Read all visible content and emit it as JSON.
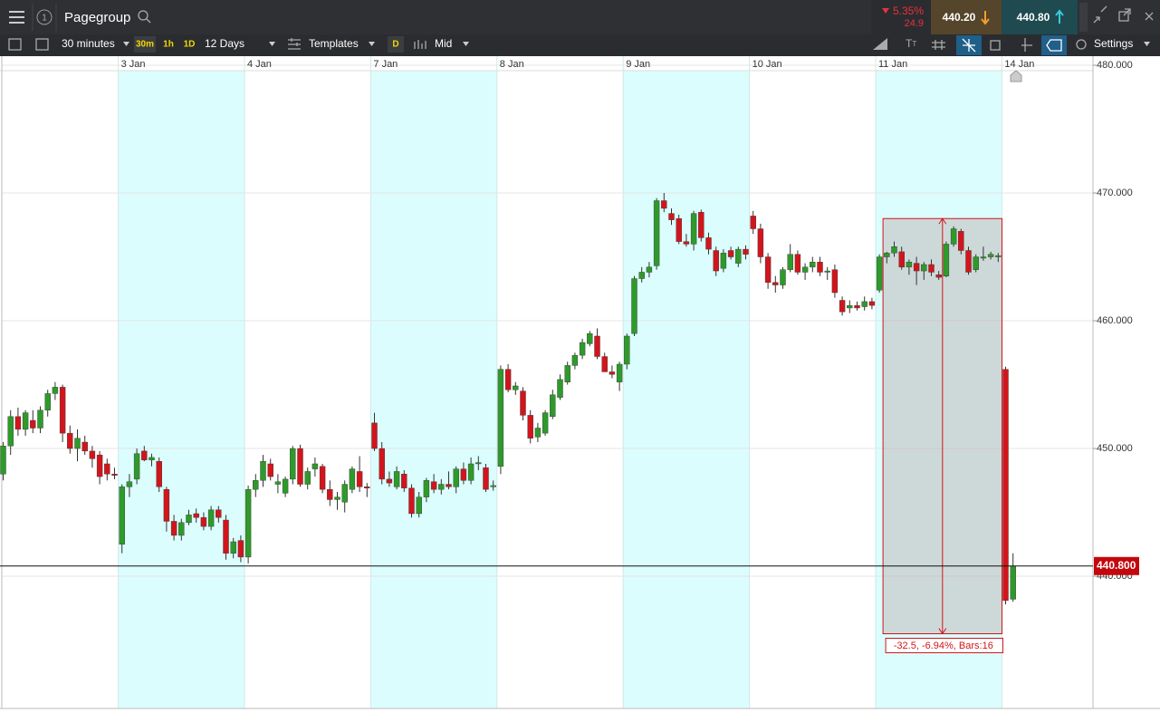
{
  "toolbar": {
    "instrument": "Pagegroup",
    "panel_number": "1",
    "interval": "30 minutes",
    "interval_buttons": [
      "30m",
      "1h",
      "1D"
    ],
    "range": "12 Days",
    "templates": "Templates",
    "d_button": "D",
    "price_mode": "Mid",
    "settings": "Settings",
    "change_pct": "5.35%",
    "change_abs": "24.9",
    "sell": "440.20",
    "buy": "440.80"
  },
  "chart_data": {
    "type": "candlestick",
    "categories": [
      null,
      null,
      null,
      null,
      null,
      null,
      null,
      null,
      null,
      null,
      null,
      null,
      null,
      null,
      null,
      null,
      "3 Jan",
      null,
      null,
      null,
      null,
      null,
      null,
      null,
      null,
      null,
      null,
      null,
      null,
      null,
      null,
      null,
      null,
      "4 Jan",
      null,
      null,
      null,
      null,
      null,
      null,
      null,
      null,
      null,
      null,
      null,
      null,
      null,
      null,
      null,
      null,
      "7 Jan",
      null,
      null,
      null,
      null,
      null,
      null,
      null,
      null,
      null,
      null,
      null,
      null,
      null,
      null,
      null,
      null,
      "8 Jan",
      null,
      null,
      null,
      null,
      null,
      null,
      null,
      null,
      null,
      null,
      null,
      null,
      null,
      null,
      null,
      null,
      "9 Jan",
      null,
      null,
      null,
      null,
      null,
      null,
      null,
      null,
      null,
      null,
      null,
      null,
      null,
      null,
      null,
      null,
      "10 Jan",
      null,
      null,
      null,
      null,
      null,
      null,
      null,
      null,
      null,
      null,
      null,
      null,
      null,
      null,
      null,
      null,
      "11 Jan",
      null,
      null,
      null,
      null,
      null,
      null,
      null,
      null,
      null,
      null,
      null,
      null,
      null,
      null,
      null,
      null,
      "14 Jan",
      null
    ],
    "candles": [
      [
        448,
        450.5,
        447.5,
        450.2
      ],
      [
        450.2,
        453,
        449.5,
        452.5
      ],
      [
        452.5,
        453.2,
        451,
        451.5
      ],
      [
        451.5,
        453,
        451,
        452.8
      ],
      [
        452.2,
        453,
        451.2,
        451.6
      ],
      [
        451.6,
        453.3,
        451.2,
        453
      ],
      [
        453,
        454.6,
        452.5,
        454.3
      ],
      [
        454.3,
        455.2,
        453.8,
        454.8
      ],
      [
        454.8,
        455,
        450.5,
        451.2
      ],
      [
        451.2,
        451.8,
        449.6,
        450
      ],
      [
        450,
        451.5,
        449,
        450.8
      ],
      [
        450.5,
        451,
        449.5,
        449.8
      ],
      [
        449.8,
        450.2,
        448.5,
        449.2
      ],
      [
        449.5,
        449.8,
        447.2,
        447.8
      ],
      [
        448.8,
        449.2,
        447.5,
        448
      ],
      [
        448,
        448.5,
        447.6,
        447.9
      ],
      [
        442.5,
        447.2,
        441.8,
        447
      ],
      [
        447,
        448,
        446.2,
        447.4
      ],
      [
        447.6,
        450,
        447.2,
        449.6
      ],
      [
        449.8,
        450.2,
        449,
        449.1
      ],
      [
        449.1,
        449.6,
        448.6,
        449.3
      ],
      [
        449,
        449.3,
        446.6,
        447
      ],
      [
        446.8,
        447,
        443.5,
        444.3
      ],
      [
        444.3,
        444.8,
        442.8,
        443.2
      ],
      [
        443.2,
        444.5,
        442.8,
        444.2
      ],
      [
        444.2,
        445.2,
        444,
        444.8
      ],
      [
        444.9,
        445.3,
        444.2,
        444.6
      ],
      [
        444.6,
        445,
        443.6,
        443.9
      ],
      [
        443.9,
        445.5,
        443.6,
        445.2
      ],
      [
        445.2,
        445.5,
        444.2,
        444.6
      ],
      [
        444.4,
        444.8,
        441.3,
        441.8
      ],
      [
        441.8,
        443,
        441.4,
        442.7
      ],
      [
        442.8,
        443.2,
        441.1,
        441.5
      ],
      [
        441.5,
        447.1,
        441,
        446.8
      ],
      [
        446.8,
        448,
        446.2,
        447.5
      ],
      [
        447.5,
        449.5,
        447,
        449
      ],
      [
        448.8,
        449.2,
        447.5,
        447.8
      ],
      [
        447.2,
        448,
        446.5,
        447.4
      ],
      [
        446.5,
        447.8,
        446.2,
        447.6
      ],
      [
        447.6,
        450.2,
        447.2,
        450
      ],
      [
        450,
        450.3,
        447,
        447.2
      ],
      [
        447.2,
        448.5,
        446.8,
        448.2
      ],
      [
        448.4,
        449.3,
        447.8,
        448.8
      ],
      [
        448.6,
        448.8,
        446.5,
        446.8
      ],
      [
        446.8,
        447.5,
        445.5,
        446
      ],
      [
        446,
        446.6,
        445.2,
        446.2
      ],
      [
        445.8,
        447.5,
        445,
        447.2
      ],
      [
        446.8,
        448.6,
        446.5,
        448.4
      ],
      [
        448.2,
        449.4,
        446.6,
        447
      ],
      [
        447,
        447.3,
        446.2,
        446.9
      ],
      [
        452,
        452.8,
        449.8,
        450
      ],
      [
        450,
        450.5,
        447.2,
        447.6
      ],
      [
        447.6,
        448.2,
        447,
        447.3
      ],
      [
        447,
        448.6,
        446.8,
        448.2
      ],
      [
        448,
        448.3,
        446.6,
        446.9
      ],
      [
        446.9,
        447.2,
        444.6,
        444.9
      ],
      [
        444.9,
        446.6,
        444.6,
        446.2
      ],
      [
        446.2,
        447.7,
        445.8,
        447.5
      ],
      [
        447.4,
        448,
        446.5,
        446.8
      ],
      [
        446.8,
        447.6,
        446.4,
        447.2
      ],
      [
        447.2,
        448.2,
        446.8,
        447
      ],
      [
        447,
        448.6,
        446.5,
        448.4
      ],
      [
        448.4,
        448.9,
        447.2,
        447.5
      ],
      [
        447.5,
        449.3,
        447.2,
        448.8
      ],
      [
        448.8,
        449.4,
        448.3,
        448.9
      ],
      [
        448.5,
        448.8,
        446.6,
        446.8
      ],
      [
        447,
        447.5,
        446.7,
        447.1
      ],
      [
        448.6,
        456.5,
        448,
        456.2
      ],
      [
        456.2,
        456.6,
        454.4,
        454.6
      ],
      [
        454.6,
        455.2,
        454.2,
        454.9
      ],
      [
        454.5,
        454.8,
        452.2,
        452.6
      ],
      [
        452.6,
        453,
        450.4,
        450.8
      ],
      [
        450.9,
        452,
        450.5,
        451.6
      ],
      [
        451.2,
        453,
        451,
        452.8
      ],
      [
        452.5,
        454.6,
        452.3,
        454.2
      ],
      [
        454,
        455.8,
        453.8,
        455.4
      ],
      [
        455.2,
        456.8,
        455,
        456.5
      ],
      [
        456.5,
        457.5,
        456.2,
        457.3
      ],
      [
        457.3,
        458.6,
        457,
        458.3
      ],
      [
        458.2,
        459.2,
        458,
        459
      ],
      [
        458.8,
        459.4,
        457,
        457.2
      ],
      [
        457.2,
        457.5,
        456,
        456
      ],
      [
        456,
        456.5,
        455.5,
        455.8
      ],
      [
        455.2,
        456.8,
        454.5,
        456.6
      ],
      [
        456.6,
        459,
        456.2,
        458.8
      ],
      [
        459,
        463.5,
        458.8,
        463.3
      ],
      [
        463.3,
        464.2,
        463,
        463.8
      ],
      [
        463.8,
        464.6,
        463.4,
        464.2
      ],
      [
        464.3,
        469.6,
        464,
        469.4
      ],
      [
        469.4,
        470,
        468.5,
        468.8
      ],
      [
        468.4,
        468.8,
        467.5,
        467.9
      ],
      [
        468,
        468.3,
        466,
        466.2
      ],
      [
        466.2,
        466.8,
        465.8,
        466
      ],
      [
        466,
        468.6,
        465.5,
        468.4
      ],
      [
        468.5,
        468.7,
        466.2,
        466.5
      ],
      [
        466.5,
        466.9,
        465.2,
        465.6
      ],
      [
        465.5,
        465.8,
        463.5,
        463.9
      ],
      [
        464.1,
        465.6,
        463.8,
        465.3
      ],
      [
        465.5,
        465.8,
        464.8,
        465
      ],
      [
        464.5,
        465.8,
        464.2,
        465.6
      ],
      [
        465.6,
        465.9,
        464.8,
        465.2
      ],
      [
        468.2,
        468.6,
        466.8,
        467.2
      ],
      [
        467.2,
        467.6,
        464.5,
        465
      ],
      [
        465,
        465.3,
        462.5,
        463
      ],
      [
        463,
        463.5,
        462.2,
        462.8
      ],
      [
        462.8,
        464.2,
        462.5,
        464
      ],
      [
        464,
        466,
        463.8,
        465.2
      ],
      [
        465.2,
        465.5,
        463.6,
        463.8
      ],
      [
        463.8,
        464.5,
        463.2,
        464.2
      ],
      [
        464.2,
        465,
        463.8,
        464.6
      ],
      [
        464.6,
        465,
        463.5,
        463.8
      ],
      [
        463.8,
        464.2,
        463.2,
        463.9
      ],
      [
        464,
        464.4,
        461.8,
        462.2
      ],
      [
        461.6,
        461.9,
        460.4,
        460.7
      ],
      [
        461,
        461.6,
        460.6,
        461.2
      ],
      [
        461.2,
        461.5,
        460.8,
        461
      ],
      [
        461.1,
        461.9,
        460.8,
        461.5
      ],
      [
        461.5,
        461.8,
        460.9,
        461.2
      ],
      [
        462.4,
        465.2,
        462.2,
        465
      ],
      [
        465,
        465.4,
        464.5,
        465.3
      ],
      [
        465.3,
        466.2,
        465,
        465.8
      ],
      [
        465.4,
        465.8,
        464,
        464.2
      ],
      [
        464.2,
        464.8,
        463.6,
        464.6
      ],
      [
        464.5,
        465,
        462.8,
        463.9
      ],
      [
        463.9,
        464.6,
        463.2,
        464.4
      ],
      [
        464.4,
        464.8,
        463.5,
        463.8
      ],
      [
        463.6,
        463.9,
        463.2,
        463.4
      ],
      [
        463.5,
        466.2,
        463.4,
        466
      ],
      [
        466,
        467.4,
        465.8,
        467.2
      ],
      [
        467,
        467.2,
        465.2,
        465.5
      ],
      [
        465.5,
        465.8,
        463.6,
        463.8
      ],
      [
        464,
        465.2,
        463.8,
        465
      ],
      [
        464.9,
        465.8,
        464.7,
        465
      ],
      [
        465,
        465.4,
        464.8,
        465.2
      ],
      [
        465,
        465.3,
        464.6,
        465.1
      ],
      [
        456.2,
        456.4,
        437.8,
        438.1
      ],
      [
        438.2,
        441.8,
        438,
        440.8
      ]
    ],
    "up_color": "#2e9a2a",
    "down_color": "#d2151c",
    "ylim": [
      429.65,
      480.57
    ],
    "yticks": [
      {
        "value": 440,
        "label": "440.000"
      },
      {
        "value": 450,
        "label": "450.000"
      },
      {
        "value": 460,
        "label": "460.000"
      },
      {
        "value": 470,
        "label": "470.000"
      },
      {
        "value": 480,
        "label": "480.000"
      }
    ],
    "grid": true,
    "last_price": {
      "value": 440.8,
      "label": "440.800"
    },
    "measure": {
      "label": "-32.5, -6.94%, Bars:16",
      "high": 468,
      "low": 435.5
    }
  }
}
